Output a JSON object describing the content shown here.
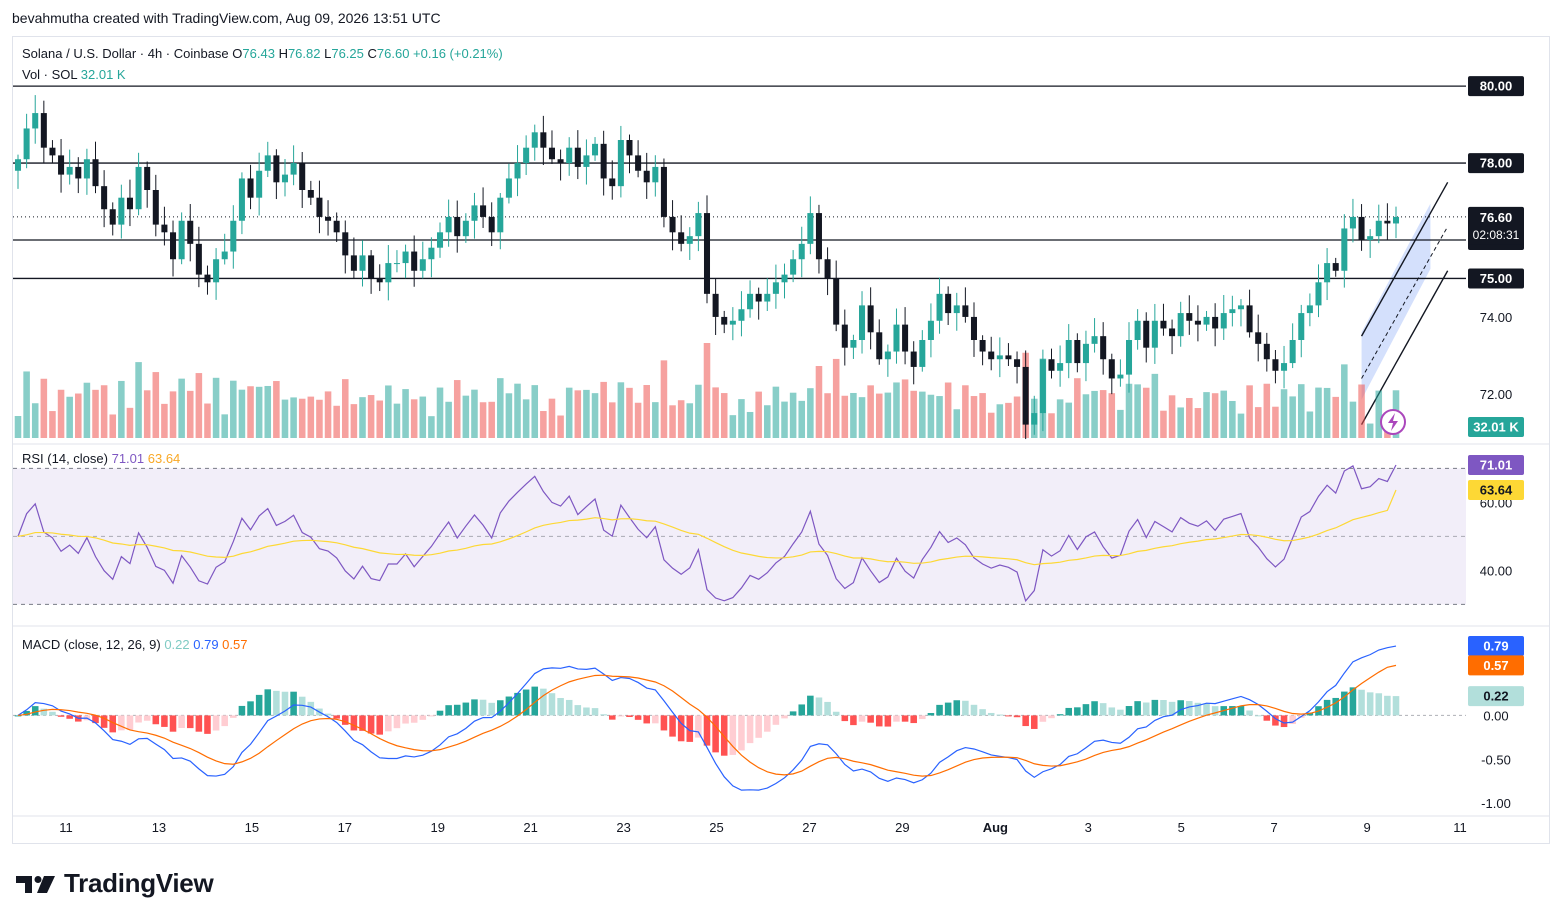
{
  "header": {
    "attribution": "bevahmutha created with TradingView.com, Aug 09, 2026 13:51 UTC"
  },
  "legend": {
    "symbol": "Solana / U.S. Dollar · 4h · Coinbase",
    "o_label": "O",
    "o_value": "76.43",
    "h_label": "H",
    "h_value": "76.82",
    "l_label": "L",
    "l_value": "76.25",
    "c_label": "C",
    "c_value": "76.60",
    "change": "+0.16 (+0.21%)",
    "vol_label": "Vol · SOL",
    "vol_value": "32.01 K"
  },
  "rsi": {
    "label": "RSI (14, close)",
    "value": "71.01",
    "ma_value": "63.64",
    "upper_band": 70,
    "lower_band": 30,
    "axis_ticks": [
      "60.00",
      "40.00"
    ]
  },
  "macd": {
    "label": "MACD (close, 12, 26, 9)",
    "hist": "0.22",
    "macd": "0.79",
    "signal": "0.57",
    "axis_ticks": [
      "0.00",
      "-0.50",
      "-1.00"
    ]
  },
  "price_axis": {
    "ticks": [
      "74.00",
      "72.00"
    ],
    "levels": [
      "80.00",
      "78.00",
      "76.00",
      "75.00"
    ],
    "last_price": "76.60",
    "countdown": "02:08:31",
    "volume_badge": "32.01 K"
  },
  "time_axis": {
    "labels": [
      "11",
      "13",
      "15",
      "17",
      "19",
      "21",
      "23",
      "25",
      "27",
      "29",
      "Aug",
      "3",
      "5",
      "7",
      "9",
      "11"
    ]
  },
  "chart_data": {
    "type": "candlestick",
    "symbol": "Solana / U.S. Dollar",
    "interval": "4h",
    "exchange": "Coinbase",
    "price_range": [
      70.8,
      81.2
    ],
    "horizontal_levels": [
      80.0,
      78.0,
      76.0,
      75.0
    ],
    "last": {
      "open": 76.43,
      "high": 76.82,
      "low": 76.25,
      "close": 76.6,
      "change": 0.16,
      "change_pct": 0.21
    },
    "closes": [
      78.1,
      78.9,
      79.3,
      78.4,
      78.2,
      77.7,
      77.9,
      77.6,
      78.1,
      77.4,
      76.8,
      76.4,
      77.1,
      76.8,
      77.9,
      77.3,
      76.4,
      76.2,
      75.5,
      76.5,
      75.9,
      75.1,
      74.9,
      75.5,
      75.7,
      76.5,
      77.6,
      77.1,
      77.8,
      78.2,
      77.5,
      77.7,
      78.0,
      77.3,
      77.1,
      76.6,
      76.5,
      76.2,
      75.6,
      75.2,
      75.6,
      75.0,
      74.9,
      75.4,
      75.4,
      75.7,
      75.2,
      75.5,
      75.8,
      76.2,
      76.6,
      76.1,
      76.5,
      76.9,
      76.6,
      76.2,
      77.1,
      77.6,
      78.0,
      78.4,
      78.8,
      78.4,
      78.1,
      78.0,
      78.4,
      77.9,
      78.2,
      78.5,
      77.6,
      77.4,
      78.6,
      78.2,
      77.8,
      77.5,
      77.9,
      76.6,
      76.2,
      75.9,
      76.1,
      76.7,
      74.6,
      74.0,
      73.8,
      73.9,
      74.2,
      74.6,
      74.4,
      74.6,
      74.9,
      75.1,
      75.5,
      75.9,
      76.7,
      75.5,
      75.0,
      73.8,
      73.2,
      73.4,
      74.3,
      73.6,
      72.9,
      73.1,
      73.8,
      73.1,
      72.7,
      73.4,
      73.9,
      74.6,
      74.1,
      74.3,
      74.0,
      73.4,
      73.1,
      72.9,
      73.0,
      72.9,
      72.7,
      71.2,
      71.5,
      72.9,
      72.6,
      72.8,
      73.4,
      72.8,
      73.3,
      73.5,
      72.9,
      72.4,
      72.5,
      73.4,
      73.9,
      73.2,
      73.9,
      73.7,
      73.5,
      74.1,
      73.9,
      73.8,
      74.0,
      73.7,
      74.1,
      74.2,
      74.3,
      73.6,
      73.3,
      72.9,
      72.6,
      72.8,
      73.4,
      74.1,
      74.3,
      74.9,
      75.4,
      75.2,
      76.3,
      76.6,
      76.0,
      76.1,
      76.5,
      76.43,
      76.6
    ],
    "volume_last": 32.01,
    "rsi": {
      "period": 14,
      "value": 71.01,
      "ma": 63.64,
      "ylim": [
        26,
        76
      ]
    },
    "macd": {
      "fast": 12,
      "slow": 26,
      "signal": 9,
      "macd": 0.79,
      "signal_value": 0.57,
      "histogram": 0.22,
      "ylim": [
        -1.1,
        0.95
      ]
    },
    "channel": {
      "type": "ascending",
      "start_label": "7",
      "end_label": "9"
    }
  },
  "colors": {
    "up": "#26a69a",
    "down": "#ef5350",
    "rsi_line": "#7e57c2",
    "rsi_ma": "#fdd835",
    "macd_line": "#2962ff",
    "signal_line": "#ff6d00",
    "channel_fill": "#c9d8fb",
    "level_line": "#131722"
  },
  "brand": {
    "name": "TradingView"
  }
}
